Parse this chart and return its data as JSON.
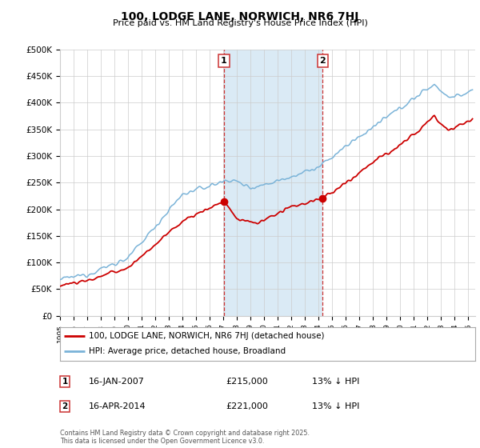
{
  "title": "100, LODGE LANE, NORWICH, NR6 7HJ",
  "subtitle": "Price paid vs. HM Land Registry's House Price Index (HPI)",
  "ylabel_ticks": [
    "£0",
    "£50K",
    "£100K",
    "£150K",
    "£200K",
    "£250K",
    "£300K",
    "£350K",
    "£400K",
    "£450K",
    "£500K"
  ],
  "ytick_values": [
    0,
    50000,
    100000,
    150000,
    200000,
    250000,
    300000,
    350000,
    400000,
    450000,
    500000
  ],
  "ylim": [
    0,
    500000
  ],
  "xlim_start": 1995.0,
  "xlim_end": 2025.5,
  "vline1_x": 2007.04,
  "vline2_x": 2014.29,
  "sale1_date": "16-JAN-2007",
  "sale1_price": "£215,000",
  "sale1_hpi": "13% ↓ HPI",
  "sale2_date": "16-APR-2014",
  "sale2_price": "£221,000",
  "sale2_hpi": "13% ↓ HPI",
  "legend_line1": "100, LODGE LANE, NORWICH, NR6 7HJ (detached house)",
  "legend_line2": "HPI: Average price, detached house, Broadland",
  "footer": "Contains HM Land Registry data © Crown copyright and database right 2025.\nThis data is licensed under the Open Government Licence v3.0.",
  "hpi_color": "#7ab3d8",
  "price_color": "#cc0000",
  "highlight_color": "#daeaf5",
  "vline_color": "#cc3333",
  "background_color": "#ffffff",
  "grid_color": "#cccccc"
}
